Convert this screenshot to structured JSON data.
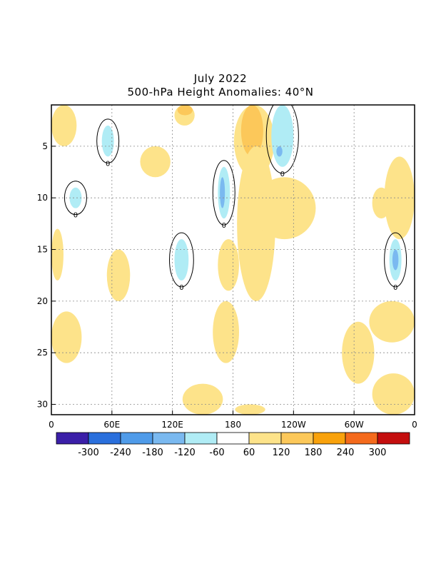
{
  "chart_data": {
    "type": "heatmap",
    "title": "July 2022",
    "subtitle": "500-hPa Height Anomalies: 40°N",
    "xlabel": "",
    "ylabel": "",
    "x_ticks": [
      {
        "lon": 0,
        "label": "0"
      },
      {
        "lon": 60,
        "label": "60E"
      },
      {
        "lon": 120,
        "label": "120E"
      },
      {
        "lon": 180,
        "label": "180"
      },
      {
        "lon": 240,
        "label": "120W"
      },
      {
        "lon": 300,
        "label": "60W"
      },
      {
        "lon": 360,
        "label": "0"
      }
    ],
    "y_ticks": [
      5,
      10,
      15,
      20,
      25,
      30
    ],
    "xlim": [
      0,
      360
    ],
    "ylim": [
      31,
      1
    ],
    "grid": true,
    "colorbar": {
      "labels": [
        "-300",
        "-240",
        "-180",
        "-120",
        "-60",
        "60",
        "120",
        "180",
        "240",
        "300"
      ],
      "colors": [
        "#3b1fa8",
        "#2a6fdc",
        "#4f9be9",
        "#7ab9f0",
        "#b0ecf5",
        "#ffffff",
        "#fde38a",
        "#fcc85a",
        "#f9a20c",
        "#f46a1c",
        "#c40e0e"
      ]
    },
    "contour_label": "0",
    "anomaly_regions": [
      {
        "sign": "pos",
        "level": 60,
        "lon": [
          181,
          221
        ],
        "day": [
          1,
          8
        ]
      },
      {
        "sign": "pos",
        "level": 120,
        "lon": [
          188,
          210
        ],
        "day": [
          1,
          6
        ]
      },
      {
        "sign": "pos",
        "level": 60,
        "lon": [
          184,
          222
        ],
        "day": [
          5,
          20
        ]
      },
      {
        "sign": "pos",
        "level": 60,
        "lon": [
          200,
          262
        ],
        "day": [
          8,
          14
        ]
      },
      {
        "sign": "pos",
        "level": 60,
        "lon": [
          122,
          142
        ],
        "day": [
          1,
          3
        ]
      },
      {
        "sign": "pos",
        "level": 120,
        "lon": [
          125,
          140
        ],
        "day": [
          1,
          2
        ]
      },
      {
        "sign": "pos",
        "level": 60,
        "lon": [
          0,
          25
        ],
        "day": [
          1,
          5
        ]
      },
      {
        "sign": "pos",
        "level": 60,
        "lon": [
          88,
          118
        ],
        "day": [
          5,
          8
        ]
      },
      {
        "sign": "pos",
        "level": 60,
        "lon": [
          0,
          12
        ],
        "day": [
          13,
          18
        ]
      },
      {
        "sign": "pos",
        "level": 60,
        "lon": [
          55,
          78
        ],
        "day": [
          15,
          20
        ]
      },
      {
        "sign": "pos",
        "level": 60,
        "lon": [
          165,
          186
        ],
        "day": [
          14,
          19
        ]
      },
      {
        "sign": "pos",
        "level": 60,
        "lon": [
          0,
          30
        ],
        "day": [
          21,
          26
        ]
      },
      {
        "sign": "pos",
        "level": 60,
        "lon": [
          160,
          186
        ],
        "day": [
          20,
          26
        ]
      },
      {
        "sign": "pos",
        "level": 60,
        "lon": [
          315,
          360
        ],
        "day": [
          20,
          24
        ]
      },
      {
        "sign": "pos",
        "level": 60,
        "lon": [
          288,
          320
        ],
        "day": [
          22,
          28
        ]
      },
      {
        "sign": "pos",
        "level": 60,
        "lon": [
          318,
          360
        ],
        "day": [
          27,
          31
        ]
      },
      {
        "sign": "pos",
        "level": 60,
        "lon": [
          130,
          170
        ],
        "day": [
          28,
          31
        ]
      },
      {
        "sign": "pos",
        "level": 60,
        "lon": [
          182,
          212
        ],
        "day": [
          30,
          31
        ]
      },
      {
        "sign": "pos",
        "level": 60,
        "lon": [
          330,
          360
        ],
        "day": [
          6,
          14
        ]
      },
      {
        "sign": "pos",
        "level": 60,
        "lon": [
          318,
          336
        ],
        "day": [
          9,
          12
        ]
      },
      {
        "sign": "neg",
        "level": -60,
        "lon": [
          218,
          240
        ],
        "day": [
          1,
          7
        ]
      },
      {
        "sign": "neg",
        "level": -120,
        "lon": [
          223,
          229
        ],
        "day": [
          5,
          6
        ]
      },
      {
        "sign": "neg",
        "level": -60,
        "lon": [
          165,
          177
        ],
        "day": [
          7,
          12
        ]
      },
      {
        "sign": "neg",
        "level": -120,
        "lon": [
          167,
          172
        ],
        "day": [
          8,
          11
        ]
      },
      {
        "sign": "neg",
        "level": -60,
        "lon": [
          122,
          136
        ],
        "day": [
          14,
          18
        ]
      },
      {
        "sign": "neg",
        "level": -60,
        "lon": [
          335,
          347
        ],
        "day": [
          14,
          18
        ]
      },
      {
        "sign": "neg",
        "level": -120,
        "lon": [
          338,
          344
        ],
        "day": [
          15,
          17
        ]
      },
      {
        "sign": "neg",
        "level": -60,
        "lon": [
          50,
          62
        ],
        "day": [
          3,
          6
        ]
      },
      {
        "sign": "neg",
        "level": -60,
        "lon": [
          18,
          30
        ],
        "day": [
          9,
          11
        ]
      }
    ]
  }
}
